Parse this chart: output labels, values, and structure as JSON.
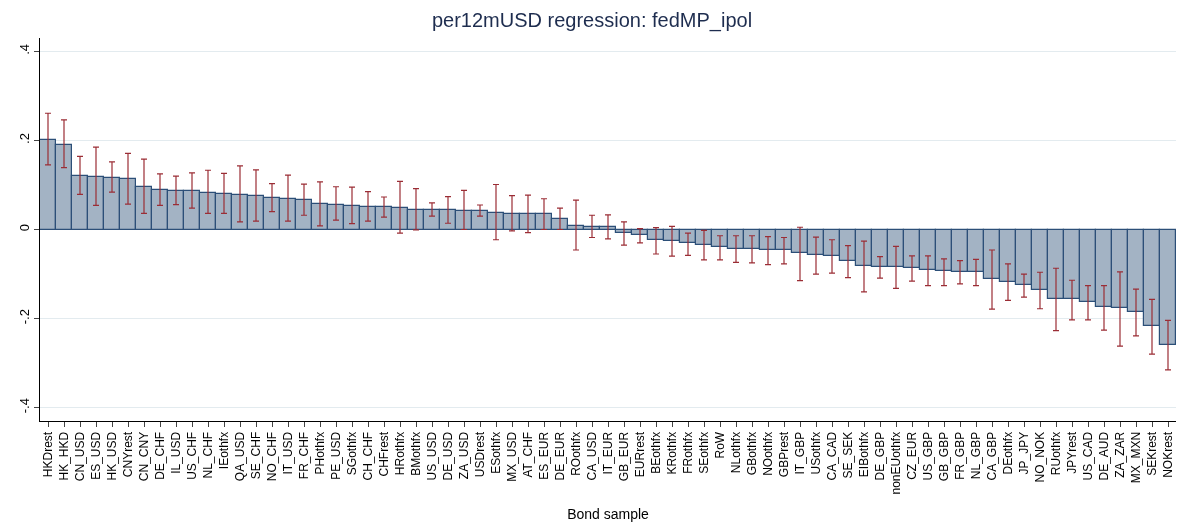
{
  "chart_data": {
    "type": "bar",
    "title": "per12mUSD regression: fedMP_ipol",
    "xlabel": "Bond sample",
    "categories": [
      "HKDrest",
      "HK_HKD",
      "CN_USD",
      "ES_USD",
      "HK_USD",
      "CNYrest",
      "CN_CNY",
      "DE_CHF",
      "IL_USD",
      "US_CHF",
      "NL_CHF",
      "IEothfx",
      "QA_USD",
      "SE_CHF",
      "NO_CHF",
      "IT_USD",
      "FR_CHF",
      "PHothfx",
      "PE_USD",
      "SGothfx",
      "CH_CHF",
      "CHFrest",
      "HRothfx",
      "BMothfx",
      "US_USD",
      "DE_USD",
      "ZA_USD",
      "USDrest",
      "ESothfx",
      "MX_USD",
      "AT_CHF",
      "ES_EUR",
      "DE_EUR",
      "ROothfx",
      "CA_USD",
      "IT_EUR",
      "GB_EUR",
      "EURrest",
      "BEothfx",
      "KRothfx",
      "FRothfx",
      "SEothfx",
      "RoW",
      "NLothfx",
      "GBothfx",
      "NOothfx",
      "GBPrest",
      "IT_GBP",
      "USothfx",
      "CA_CAD",
      "SE_SEK",
      "EIBothfx",
      "DE_GBP",
      "nonEUothfx",
      "CZ_EUR",
      "US_GBP",
      "GB_GBP",
      "FR_GBP",
      "NL_GBP",
      "CA_GBP",
      "DEothfx",
      "JP_JPY",
      "NO_NOK",
      "RUothfx",
      "JPYrest",
      "US_CAD",
      "DE_AUD",
      "ZA_ZAR",
      "MX_MXN",
      "SEKrest",
      "NOKrest"
    ],
    "values": [
      0.201,
      0.19,
      0.12,
      0.118,
      0.116,
      0.113,
      0.096,
      0.088,
      0.086,
      0.086,
      0.083,
      0.08,
      0.078,
      0.075,
      0.07,
      0.069,
      0.066,
      0.057,
      0.056,
      0.053,
      0.051,
      0.05,
      0.049,
      0.043,
      0.044,
      0.044,
      0.042,
      0.042,
      0.037,
      0.035,
      0.034,
      0.034,
      0.023,
      0.008,
      0.006,
      0.005,
      -0.007,
      -0.012,
      -0.024,
      -0.025,
      -0.031,
      -0.035,
      -0.039,
      -0.043,
      -0.044,
      -0.046,
      -0.046,
      -0.052,
      -0.057,
      -0.06,
      -0.07,
      -0.082,
      -0.084,
      -0.085,
      -0.087,
      -0.091,
      -0.093,
      -0.095,
      -0.095,
      -0.111,
      -0.117,
      -0.125,
      -0.135,
      -0.156,
      -0.157,
      -0.162,
      -0.175,
      -0.177,
      -0.186,
      -0.217,
      -0.259
    ],
    "errors": [
      [
        0.145,
        0.261
      ],
      [
        0.139,
        0.246
      ],
      [
        0.079,
        0.164
      ],
      [
        0.054,
        0.185
      ],
      [
        0.084,
        0.152
      ],
      [
        0.057,
        0.171
      ],
      [
        0.036,
        0.158
      ],
      [
        0.054,
        0.125
      ],
      [
        0.056,
        0.12
      ],
      [
        0.048,
        0.127
      ],
      [
        0.036,
        0.133
      ],
      [
        0.036,
        0.126
      ],
      [
        0.017,
        0.143
      ],
      [
        0.019,
        0.134
      ],
      [
        0.04,
        0.103
      ],
      [
        0.019,
        0.122
      ],
      [
        0.032,
        0.102
      ],
      [
        0.008,
        0.107
      ],
      [
        0.021,
        0.096
      ],
      [
        0.013,
        0.095
      ],
      [
        0.019,
        0.085
      ],
      [
        0.028,
        0.073
      ],
      [
        -0.008,
        0.108
      ],
      [
        -0.001,
        0.092
      ],
      [
        0.03,
        0.06
      ],
      [
        0.014,
        0.074
      ],
      [
        0.0,
        0.088
      ],
      [
        0.03,
        0.055
      ],
      [
        -0.023,
        0.101
      ],
      [
        -0.003,
        0.076
      ],
      [
        -0.007,
        0.077
      ],
      [
        0.0,
        0.069
      ],
      [
        0.0,
        0.048
      ],
      [
        -0.046,
        0.066
      ],
      [
        -0.018,
        0.032
      ],
      [
        -0.021,
        0.033
      ],
      [
        -0.035,
        0.017
      ],
      [
        -0.03,
        0.002
      ],
      [
        -0.055,
        0.004
      ],
      [
        -0.06,
        0.007
      ],
      [
        -0.058,
        -0.008
      ],
      [
        -0.068,
        -0.002
      ],
      [
        -0.068,
        -0.014
      ],
      [
        -0.074,
        -0.014
      ],
      [
        -0.075,
        -0.014
      ],
      [
        -0.079,
        -0.016
      ],
      [
        -0.077,
        -0.018
      ],
      [
        -0.115,
        0.005
      ],
      [
        -0.1,
        -0.017
      ],
      [
        -0.098,
        -0.023
      ],
      [
        -0.108,
        -0.036
      ],
      [
        -0.14,
        -0.026
      ],
      [
        -0.109,
        -0.061
      ],
      [
        -0.132,
        -0.038
      ],
      [
        -0.116,
        -0.059
      ],
      [
        -0.126,
        -0.059
      ],
      [
        -0.126,
        -0.066
      ],
      [
        -0.122,
        -0.07
      ],
      [
        -0.126,
        -0.067
      ],
      [
        -0.179,
        -0.046
      ],
      [
        -0.159,
        -0.077
      ],
      [
        -0.152,
        -0.1
      ],
      [
        -0.178,
        -0.096
      ],
      [
        -0.227,
        -0.087
      ],
      [
        -0.203,
        -0.114
      ],
      [
        -0.203,
        -0.126
      ],
      [
        -0.226,
        -0.126
      ],
      [
        -0.262,
        -0.095
      ],
      [
        -0.239,
        -0.134
      ],
      [
        -0.28,
        -0.157
      ],
      [
        -0.315,
        -0.204
      ]
    ],
    "color": "#a3b3c4",
    "ylim": [
      -0.43,
      0.43
    ],
    "yticks": [
      {
        "value": -0.4,
        "label": "-.4"
      },
      {
        "value": -0.2,
        "label": "-.2"
      },
      0,
      {
        "value": 0.2,
        "label": ".2"
      },
      {
        "value": 0.4,
        "label": ".4"
      }
    ],
    "grid": "y"
  }
}
